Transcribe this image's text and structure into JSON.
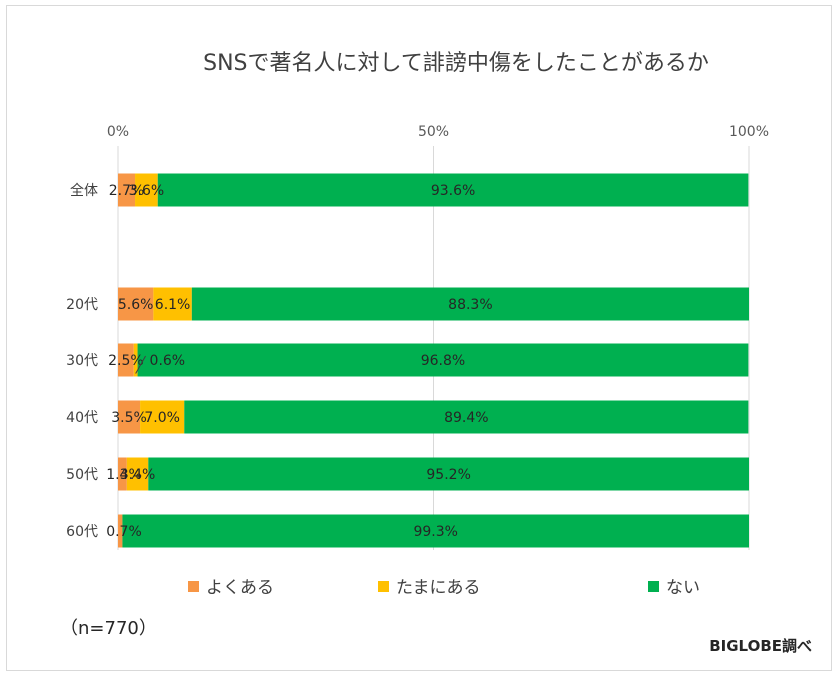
{
  "chart_data": {
    "type": "bar",
    "orientation": "horizontal",
    "stacked": true,
    "percent_stacked": true,
    "title": "SNSで著名人に対して誹謗中傷をしたことがあるか",
    "xlim": [
      0,
      100
    ],
    "x_ticks": [
      "0%",
      "50%",
      "100%"
    ],
    "grid": true,
    "legend_position": "bottom",
    "categories": [
      "全体",
      "20代",
      "30代",
      "40代",
      "50代",
      "60代"
    ],
    "series": [
      {
        "name": "よくある",
        "color": "#F79646",
        "values": [
          2.7,
          5.6,
          2.5,
          3.5,
          1.4,
          0.7
        ],
        "labels": [
          "2.7%",
          "5.6%",
          "2.5%",
          "3.5%",
          "1.4%",
          "0.7%"
        ]
      },
      {
        "name": "たまにある",
        "color": "#FFC000",
        "values": [
          3.6,
          6.1,
          0.6,
          7.0,
          3.4,
          0
        ],
        "labels": [
          "3.6%",
          "6.1%",
          "0.6%",
          "7.0%",
          "3.4%",
          ""
        ]
      },
      {
        "name": "ない",
        "color": "#00B050",
        "values": [
          93.6,
          88.3,
          96.8,
          89.4,
          95.2,
          99.3
        ],
        "labels": [
          "93.6%",
          "88.3%",
          "96.8%",
          "89.4%",
          "95.2%",
          "99.3%"
        ]
      }
    ],
    "annotations": {
      "note": "（n=770）",
      "source": "BIGLOBE調べ"
    }
  }
}
